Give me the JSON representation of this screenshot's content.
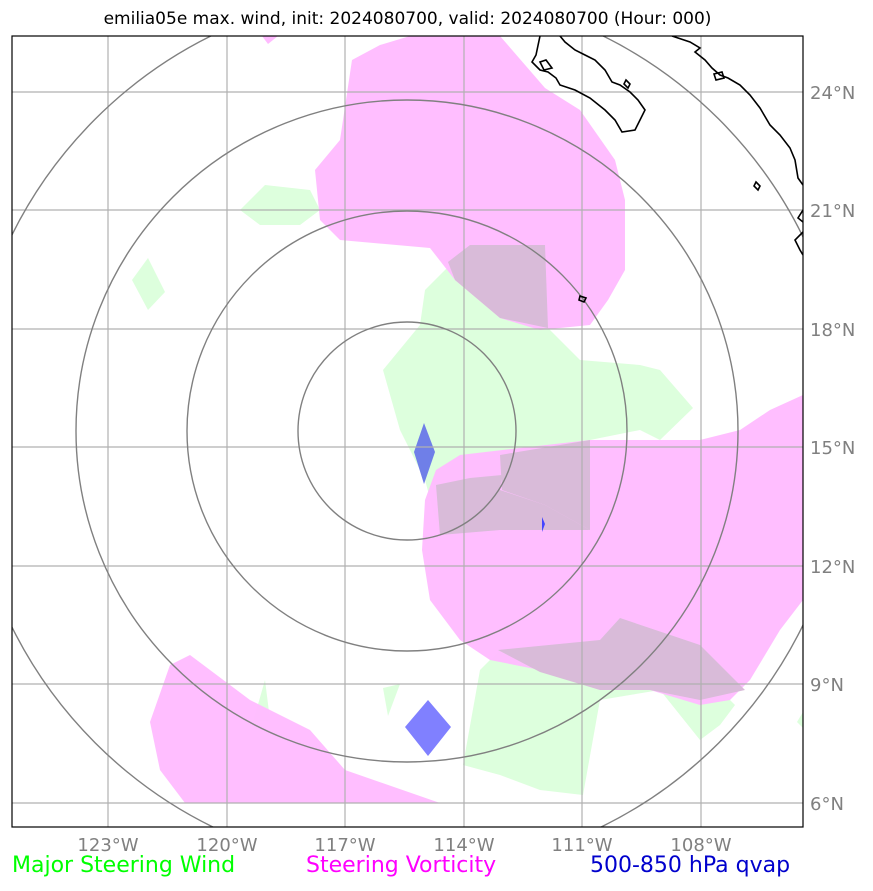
{
  "title": "emilia05e max. wind, init: 2024080700, valid: 2024080700 (Hour: 000)",
  "map": {
    "lon_ticks": [
      "123°W",
      "120°W",
      "117°W",
      "114°W",
      "111°W",
      "108°W"
    ],
    "lat_ticks": [
      "24°N",
      "21°N",
      "18°N",
      "15°N",
      "12°N",
      "9°N",
      "6°N"
    ],
    "colors": {
      "steering_wind": "#ddffdd",
      "steering_vorticity": "#ffbbff",
      "qvap": "#7777ee",
      "grid": "#a9a9a9",
      "range_rings": "#808080",
      "coastline": "#000000"
    }
  },
  "legend": {
    "wind": "Major Steering Wind",
    "vorticity": "Steering Vorticity",
    "qvap": "500-850 hPa qvap"
  }
}
